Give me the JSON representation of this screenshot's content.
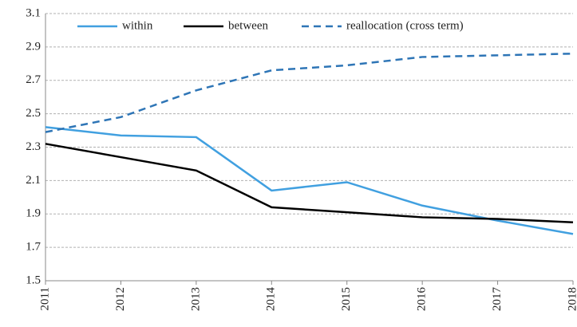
{
  "chart_data": {
    "type": "line",
    "categories": [
      "2011",
      "2012",
      "2013",
      "2014",
      "2015",
      "2016",
      "2017",
      "2018"
    ],
    "series": [
      {
        "name": "within",
        "color": "#41a0e0",
        "style": "solid",
        "values": [
          2.42,
          2.37,
          2.36,
          2.04,
          2.09,
          1.95,
          1.86,
          1.78
        ]
      },
      {
        "name": "between",
        "color": "#000000",
        "style": "solid",
        "values": [
          2.32,
          2.24,
          2.16,
          1.94,
          1.91,
          1.88,
          1.87,
          1.85
        ]
      },
      {
        "name": "reallocation (cross term)",
        "color": "#2e75b6",
        "style": "dashed",
        "values": [
          2.39,
          2.48,
          2.64,
          2.76,
          2.79,
          2.84,
          2.85,
          2.86
        ]
      }
    ],
    "ylim": [
      1.5,
      3.1
    ],
    "yticks": [
      1.5,
      1.7,
      1.9,
      2.1,
      2.3,
      2.5,
      2.7,
      2.9,
      3.1
    ],
    "grid": true,
    "legend": "top"
  }
}
